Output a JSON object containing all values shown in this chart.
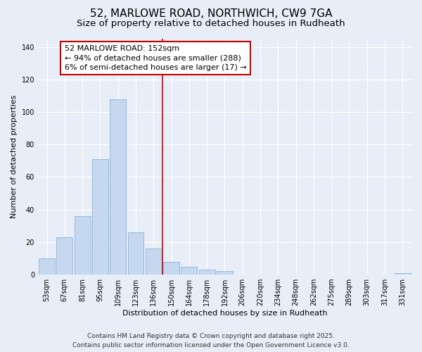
{
  "title": "52, MARLOWE ROAD, NORTHWICH, CW9 7GA",
  "subtitle": "Size of property relative to detached houses in Rudheath",
  "xlabel": "Distribution of detached houses by size in Rudheath",
  "ylabel": "Number of detached properties",
  "bin_labels": [
    "53sqm",
    "67sqm",
    "81sqm",
    "95sqm",
    "109sqm",
    "123sqm",
    "136sqm",
    "150sqm",
    "164sqm",
    "178sqm",
    "192sqm",
    "206sqm",
    "220sqm",
    "234sqm",
    "248sqm",
    "262sqm",
    "275sqm",
    "289sqm",
    "303sqm",
    "317sqm",
    "331sqm"
  ],
  "bar_heights": [
    10,
    23,
    36,
    71,
    108,
    26,
    16,
    8,
    5,
    3,
    2,
    0,
    0,
    0,
    0,
    0,
    0,
    0,
    0,
    0,
    1
  ],
  "bar_color": "#c5d8f0",
  "bar_edge_color": "#8ab4d8",
  "vline_color": "#cc0000",
  "annotation_text": "52 MARLOWE ROAD: 152sqm\n← 94% of detached houses are smaller (288)\n6% of semi-detached houses are larger (17) →",
  "annotation_box_color": "#ffffff",
  "annotation_box_edge_color": "#cc0000",
  "ylim": [
    0,
    145
  ],
  "yticks": [
    0,
    20,
    40,
    60,
    80,
    100,
    120,
    140
  ],
  "footer_line1": "Contains HM Land Registry data © Crown copyright and database right 2025.",
  "footer_line2": "Contains public sector information licensed under the Open Government Licence v3.0.",
  "background_color": "#e8eef8",
  "plot_background_color": "#e8eef8",
  "title_fontsize": 11,
  "subtitle_fontsize": 9.5,
  "annotation_fontsize": 8,
  "footer_fontsize": 6.5,
  "tick_fontsize": 7,
  "axis_label_fontsize": 8
}
